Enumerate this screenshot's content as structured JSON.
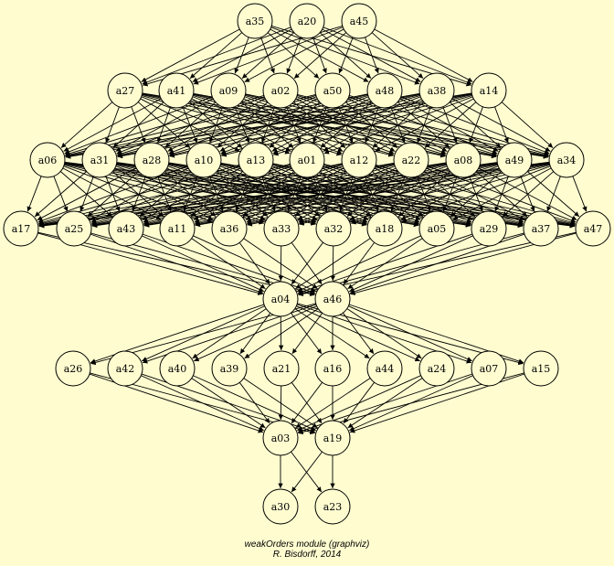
{
  "graph": {
    "background": "#fffdd0",
    "node_fill": "#fffdd0",
    "stroke": "#000000",
    "levels": [
      [
        "a35",
        "a20",
        "a45"
      ],
      [
        "a27",
        "a41",
        "a09",
        "a02",
        "a50",
        "a48",
        "a38",
        "a14"
      ],
      [
        "a06",
        "a31",
        "a28",
        "a10",
        "a13",
        "a01",
        "a12",
        "a22",
        "a08",
        "a49",
        "a34"
      ],
      [
        "a17",
        "a25",
        "a43",
        "a11",
        "a36",
        "a33",
        "a32",
        "a18",
        "a05",
        "a29",
        "a37",
        "a47"
      ],
      [
        "a04",
        "a46"
      ],
      [
        "a26",
        "a42",
        "a40",
        "a39",
        "a21",
        "a16",
        "a44",
        "a24",
        "a07",
        "a15"
      ],
      [
        "a03",
        "a19"
      ],
      [
        "a30",
        "a23"
      ]
    ],
    "edge_rule": "each node points to every node in the next level"
  },
  "caption": {
    "line1": "weakOrders module (graphviz)",
    "line2": "R. Bisdorff, 2014"
  }
}
